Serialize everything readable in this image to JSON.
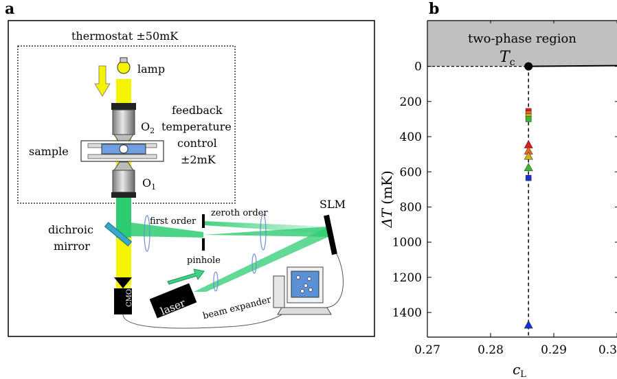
{
  "panel_a": {
    "label": "a",
    "texts": {
      "thermostat": "thermostat ±50mK",
      "lamp": "lamp",
      "o2_base": "O",
      "o2_sub": "2",
      "o1_base": "O",
      "o1_sub": "1",
      "feedback_1": "feedback",
      "feedback_2": "temperature",
      "feedback_3": "control",
      "feedback_4": "±2mK",
      "sample": "sample",
      "dichroic_1": "dichroic",
      "dichroic_2": "mirror",
      "first_order": "first order",
      "zeroth_order": "zeroth order",
      "slm": "SLM",
      "pinhole": "pinhole",
      "beam_expander": "beam expander",
      "laser": "laser",
      "cmos": "CMOS"
    },
    "colors": {
      "lamp_beam": "#f5f500",
      "laser_beam": "#2ecc71",
      "sample_fill": "#6f9fe0",
      "mirror": "#3aa7c9",
      "screen": "#5b8fd6"
    }
  },
  "panel_b": {
    "label": "b",
    "region_label": "two-phase region",
    "tc_base": "T",
    "tc_sub": "c",
    "ylabel_base": "ΔT",
    "ylabel_unit": "(mK)",
    "xlabel_base": "c",
    "xlabel_sub": "L",
    "colors": {
      "region_fill": "#c0c0c0"
    }
  },
  "chart_data": {
    "type": "scatter",
    "xlim": [
      0.27,
      0.3
    ],
    "ylim": [
      1540,
      -260
    ],
    "y_inverted": true,
    "x_ticks": [
      0.27,
      0.28,
      0.29,
      0.3
    ],
    "x_tick_labels": [
      "0.27",
      "0.28",
      "0.29",
      "0.3"
    ],
    "y_ticks": [
      0,
      200,
      400,
      600,
      800,
      1000,
      1200,
      1400
    ],
    "y_tick_labels": [
      "0",
      "200",
      "400",
      "600",
      "800",
      "1000",
      "1200",
      "1400"
    ],
    "critical_point": {
      "x": 0.286,
      "y": 0
    },
    "phase_boundary": [
      [
        0.27,
        0
      ],
      [
        0.286,
        0
      ],
      [
        0.3,
        -4
      ]
    ],
    "series": [
      {
        "marker": "square",
        "points": [
          {
            "x": 0.286,
            "y": 255,
            "color": "#e8191c"
          },
          {
            "x": 0.286,
            "y": 270,
            "color": "#f26b1d"
          },
          {
            "x": 0.286,
            "y": 285,
            "color": "#d4b01a"
          },
          {
            "x": 0.286,
            "y": 300,
            "color": "#3dbb2f"
          },
          {
            "x": 0.286,
            "y": 635,
            "color": "#1830d8"
          }
        ]
      },
      {
        "marker": "triangle",
        "points": [
          {
            "x": 0.286,
            "y": 445,
            "color": "#e8191c"
          },
          {
            "x": 0.286,
            "y": 480,
            "color": "#f26b1d"
          },
          {
            "x": 0.286,
            "y": 510,
            "color": "#d4b01a"
          },
          {
            "x": 0.286,
            "y": 575,
            "color": "#3dbb2f"
          },
          {
            "x": 0.286,
            "y": 1470,
            "color": "#1830d8"
          }
        ]
      }
    ]
  }
}
